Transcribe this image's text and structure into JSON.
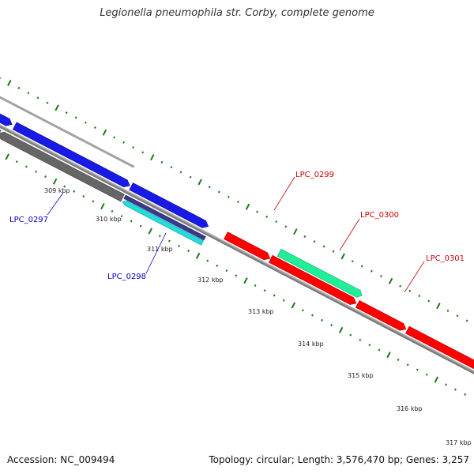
{
  "title": "Legionella pneumophila str. Corby, complete genome",
  "footer": {
    "accession": "Accession: NC_009494",
    "summary": "Topology: circular; Length: 3,576,470 bp; Genes: 3,257"
  },
  "colors": {
    "backbone": "#8c8c8c",
    "gene_blue": "#1a1ae6",
    "gene_red": "#ff0000",
    "gene_grey": "#666666",
    "gene_cyan": "#22dddd",
    "gene_green": "#22ee99",
    "gene_navy": "#3a3a8c",
    "gene_steel": "#4a86b8",
    "tick_green": "#1a7a1a",
    "label_blue": "#0000cc",
    "label_red": "#cc0000"
  },
  "scale": {
    "kbp_labels": [
      "309 kbp",
      "310 kbp",
      "311 kbp",
      "312 kbp",
      "313 kbp",
      "314 kbp",
      "315 kbp",
      "316 kbp",
      "317 kbp"
    ]
  },
  "genes": [
    {
      "label": "LPC_0297",
      "strand": "minus",
      "color_key": "gene_grey"
    },
    {
      "label": "LPC_0298",
      "strand": "minus",
      "color_key": "gene_cyan"
    },
    {
      "label": "LPC_0299",
      "strand": "plus",
      "color_key": "gene_red"
    },
    {
      "label": "LPC_0300",
      "strand": "plus",
      "color_key": "gene_green"
    },
    {
      "label": "LPC_0301",
      "strand": "plus",
      "color_key": "gene_red"
    }
  ]
}
